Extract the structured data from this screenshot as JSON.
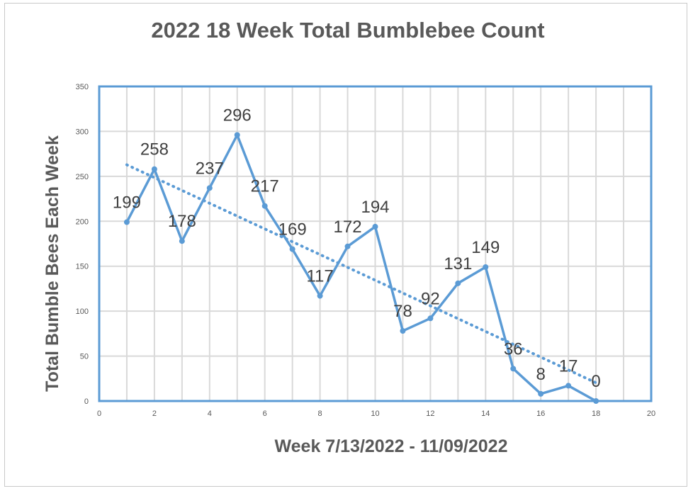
{
  "chart_data": {
    "type": "scatter",
    "title": "2022 18 Week Total Bumblebee Count",
    "xlabel": "Week 7/13/2022 - 11/09/2022",
    "ylabel": "Total Bumble Bees Each Week",
    "xlim": [
      0,
      20
    ],
    "ylim": [
      0,
      350
    ],
    "x_ticks": [
      0,
      2,
      4,
      6,
      8,
      10,
      12,
      14,
      16,
      18,
      20
    ],
    "y_ticks": [
      0,
      50,
      100,
      150,
      200,
      250,
      300,
      350
    ],
    "grid": true,
    "legend": "none",
    "series": [
      {
        "x": [
          1,
          2,
          3,
          4,
          5,
          6,
          7,
          8,
          9,
          10,
          11,
          12,
          13,
          14,
          15,
          16,
          17,
          18
        ],
        "y": [
          199,
          258,
          178,
          237,
          296,
          217,
          169,
          117,
          172,
          194,
          78,
          92,
          131,
          149,
          36,
          8,
          17,
          0
        ],
        "data_labels": [
          "199",
          "258",
          "178",
          "237",
          "296",
          "217",
          "169",
          "117",
          "172",
          "194",
          "78",
          "92",
          "131",
          "149",
          "36",
          "8",
          "17",
          "0"
        ],
        "style": "solid line with markers",
        "color": "#5b9bd5"
      }
    ],
    "trendline": {
      "type": "linear",
      "style": "dotted",
      "color": "#5b9bd5",
      "x_range": [
        1,
        18
      ]
    }
  }
}
